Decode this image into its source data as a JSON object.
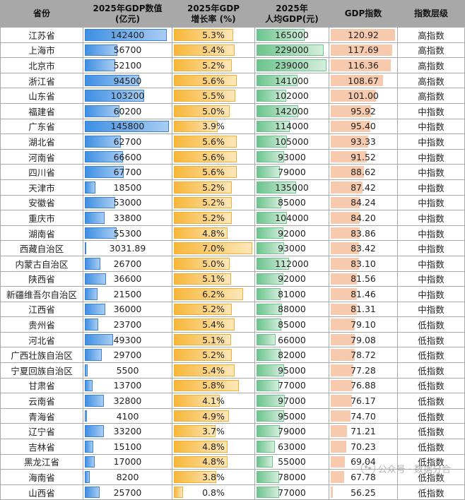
{
  "table": {
    "headers": {
      "province": "省份",
      "gdp_line1": "2025年GDP数值",
      "gdp_line2": "(亿元)",
      "growth_line1": "2025年GDP",
      "growth_line2": "增长率 (%)",
      "percap_line1": "2025年",
      "percap_line2": "人均GDP(元)",
      "index": "GDP指数",
      "tier": "指数层级"
    },
    "colors": {
      "header_bg": "#a8a8a8",
      "gdp_bar": "#3e8fe4",
      "growth_bar": "#f7b73a",
      "percap_bar": "#6cc48d",
      "index_bar": "#f7c9ad"
    },
    "scale_max": {
      "gdp": 145800,
      "growth": 7.0,
      "percap": 239000,
      "index": 120.92
    },
    "rows": [
      {
        "province": "江苏省",
        "gdp": "142400",
        "gdp_v": 142400,
        "growth": "5.3%",
        "growth_v": 5.3,
        "percap": "165000",
        "percap_v": 165000,
        "index": "120.92",
        "index_v": 120.92,
        "tier": "高指数"
      },
      {
        "province": "上海市",
        "gdp": "56700",
        "gdp_v": 56700,
        "growth": "5.4%",
        "growth_v": 5.4,
        "percap": "229000",
        "percap_v": 229000,
        "index": "117.69",
        "index_v": 117.69,
        "tier": "高指数"
      },
      {
        "province": "北京市",
        "gdp": "52100",
        "gdp_v": 52100,
        "growth": "5.2%",
        "growth_v": 5.2,
        "percap": "239000",
        "percap_v": 239000,
        "index": "116.36",
        "index_v": 116.36,
        "tier": "高指数"
      },
      {
        "province": "浙江省",
        "gdp": "94500",
        "gdp_v": 94500,
        "growth": "5.6%",
        "growth_v": 5.6,
        "percap": "141000",
        "percap_v": 141000,
        "index": "108.67",
        "index_v": 108.67,
        "tier": "高指数"
      },
      {
        "province": "山东省",
        "gdp": "103200",
        "gdp_v": 103200,
        "growth": "5.5%",
        "growth_v": 5.5,
        "percap": "102000",
        "percap_v": 102000,
        "index": "101.00",
        "index_v": 101.0,
        "tier": "高指数"
      },
      {
        "province": "福建省",
        "gdp": "60200",
        "gdp_v": 60200,
        "growth": "5.0%",
        "growth_v": 5.0,
        "percap": "142000",
        "percap_v": 142000,
        "index": "95.92",
        "index_v": 95.92,
        "tier": "中指数"
      },
      {
        "province": "广东省",
        "gdp": "145800",
        "gdp_v": 145800,
        "growth": "3.9%",
        "growth_v": 3.9,
        "percap": "114000",
        "percap_v": 114000,
        "index": "95.40",
        "index_v": 95.4,
        "tier": "中指数"
      },
      {
        "province": "湖北省",
        "gdp": "62700",
        "gdp_v": 62700,
        "growth": "5.6%",
        "growth_v": 5.6,
        "percap": "105000",
        "percap_v": 105000,
        "index": "93.33",
        "index_v": 93.33,
        "tier": "中指数"
      },
      {
        "province": "河南省",
        "gdp": "66600",
        "gdp_v": 66600,
        "growth": "5.6%",
        "growth_v": 5.6,
        "percap": "93000",
        "percap_v": 93000,
        "index": "91.52",
        "index_v": 91.52,
        "tier": "中指数"
      },
      {
        "province": "四川省",
        "gdp": "67700",
        "gdp_v": 67700,
        "growth": "5.6%",
        "growth_v": 5.6,
        "percap": "79000",
        "percap_v": 79000,
        "index": "88.62",
        "index_v": 88.62,
        "tier": "中指数"
      },
      {
        "province": "天津市",
        "gdp": "18500",
        "gdp_v": 18500,
        "growth": "5.2%",
        "growth_v": 5.2,
        "percap": "135000",
        "percap_v": 135000,
        "index": "87.42",
        "index_v": 87.42,
        "tier": "中指数"
      },
      {
        "province": "安徽省",
        "gdp": "53000",
        "gdp_v": 53000,
        "growth": "5.2%",
        "growth_v": 5.2,
        "percap": "85000",
        "percap_v": 85000,
        "index": "84.24",
        "index_v": 84.24,
        "tier": "中指数"
      },
      {
        "province": "重庆市",
        "gdp": "33800",
        "gdp_v": 33800,
        "growth": "5.2%",
        "growth_v": 5.2,
        "percap": "104000",
        "percap_v": 104000,
        "index": "84.20",
        "index_v": 84.2,
        "tier": "中指数"
      },
      {
        "province": "湖南省",
        "gdp": "55300",
        "gdp_v": 55300,
        "growth": "4.8%",
        "growth_v": 4.8,
        "percap": "92000",
        "percap_v": 92000,
        "index": "83.86",
        "index_v": 83.86,
        "tier": "中指数"
      },
      {
        "province": "西藏自治区",
        "gdp": "3031.89",
        "gdp_v": 3031.89,
        "growth": "7.0%",
        "growth_v": 7.0,
        "percap": "93000",
        "percap_v": 93000,
        "index": "83.42",
        "index_v": 83.42,
        "tier": "中指数"
      },
      {
        "province": "内蒙古自治区",
        "gdp": "26700",
        "gdp_v": 26700,
        "growth": "5.0%",
        "growth_v": 5.0,
        "percap": "112000",
        "percap_v": 112000,
        "index": "83.10",
        "index_v": 83.1,
        "tier": "中指数"
      },
      {
        "province": "陕西省",
        "gdp": "36600",
        "gdp_v": 36600,
        "growth": "5.1%",
        "growth_v": 5.1,
        "percap": "92000",
        "percap_v": 92000,
        "index": "81.56",
        "index_v": 81.56,
        "tier": "中指数"
      },
      {
        "province": "新疆维吾尔自治区",
        "gdp": "21500",
        "gdp_v": 21500,
        "growth": "6.2%",
        "growth_v": 6.2,
        "percap": "81000",
        "percap_v": 81000,
        "index": "81.46",
        "index_v": 81.46,
        "tier": "中指数"
      },
      {
        "province": "江西省",
        "gdp": "36000",
        "gdp_v": 36000,
        "growth": "5.2%",
        "growth_v": 5.2,
        "percap": "88000",
        "percap_v": 88000,
        "index": "81.31",
        "index_v": 81.31,
        "tier": "中指数"
      },
      {
        "province": "贵州省",
        "gdp": "23700",
        "gdp_v": 23700,
        "growth": "5.4%",
        "growth_v": 5.4,
        "percap": "85000",
        "percap_v": 85000,
        "index": "79.10",
        "index_v": 79.1,
        "tier": "低指数"
      },
      {
        "province": "河北省",
        "gdp": "49300",
        "gdp_v": 49300,
        "growth": "5.1%",
        "growth_v": 5.1,
        "percap": "66000",
        "percap_v": 66000,
        "index": "79.08",
        "index_v": 79.08,
        "tier": "低指数"
      },
      {
        "province": "广西壮族自治区",
        "gdp": "29700",
        "gdp_v": 29700,
        "growth": "5.2%",
        "growth_v": 5.2,
        "percap": "82000",
        "percap_v": 82000,
        "index": "78.72",
        "index_v": 78.72,
        "tier": "低指数"
      },
      {
        "province": "宁夏回族自治区",
        "gdp": "5500",
        "gdp_v": 5500,
        "growth": "5.4%",
        "growth_v": 5.4,
        "percap": "95000",
        "percap_v": 95000,
        "index": "77.28",
        "index_v": 77.28,
        "tier": "低指数"
      },
      {
        "province": "甘肃省",
        "gdp": "13700",
        "gdp_v": 13700,
        "growth": "5.8%",
        "growth_v": 5.8,
        "percap": "77000",
        "percap_v": 77000,
        "index": "76.88",
        "index_v": 76.88,
        "tier": "低指数"
      },
      {
        "province": "云南省",
        "gdp": "32800",
        "gdp_v": 32800,
        "growth": "4.1%",
        "growth_v": 4.1,
        "percap": "97000",
        "percap_v": 97000,
        "index": "76.17",
        "index_v": 76.17,
        "tier": "低指数"
      },
      {
        "province": "青海省",
        "gdp": "4100",
        "gdp_v": 4100,
        "growth": "4.9%",
        "growth_v": 4.9,
        "percap": "95000",
        "percap_v": 95000,
        "index": "74.70",
        "index_v": 74.7,
        "tier": "低指数"
      },
      {
        "province": "辽宁省",
        "gdp": "33200",
        "gdp_v": 33200,
        "growth": "3.7%",
        "growth_v": 3.7,
        "percap": "79000",
        "percap_v": 79000,
        "index": "71.21",
        "index_v": 71.21,
        "tier": "低指数"
      },
      {
        "province": "吉林省",
        "gdp": "15100",
        "gdp_v": 15100,
        "growth": "4.8%",
        "growth_v": 4.8,
        "percap": "63000",
        "percap_v": 63000,
        "index": "70.23",
        "index_v": 70.23,
        "tier": "低指数"
      },
      {
        "province": "黑龙江省",
        "gdp": "17000",
        "gdp_v": 17000,
        "growth": "4.8%",
        "growth_v": 4.8,
        "percap": "55000",
        "percap_v": 55000,
        "index": "69.04",
        "index_v": 69.04,
        "tier": "低指数"
      },
      {
        "province": "海南省",
        "gdp": "8200",
        "gdp_v": 8200,
        "growth": "3.8%",
        "growth_v": 3.8,
        "percap": "78000",
        "percap_v": 78000,
        "index": "67.78",
        "index_v": 67.78,
        "tier": "低指数"
      },
      {
        "province": "山西省",
        "gdp": "25700",
        "gdp_v": 25700,
        "growth": "0.8%",
        "growth_v": 0.8,
        "percap": "77000",
        "percap_v": 77000,
        "index": "56.25",
        "index_v": 56.25,
        "tier": "低指数"
      }
    ]
  },
  "watermark": {
    "text": "公众号 · 数据分合",
    "icon": "wechat-icon"
  }
}
